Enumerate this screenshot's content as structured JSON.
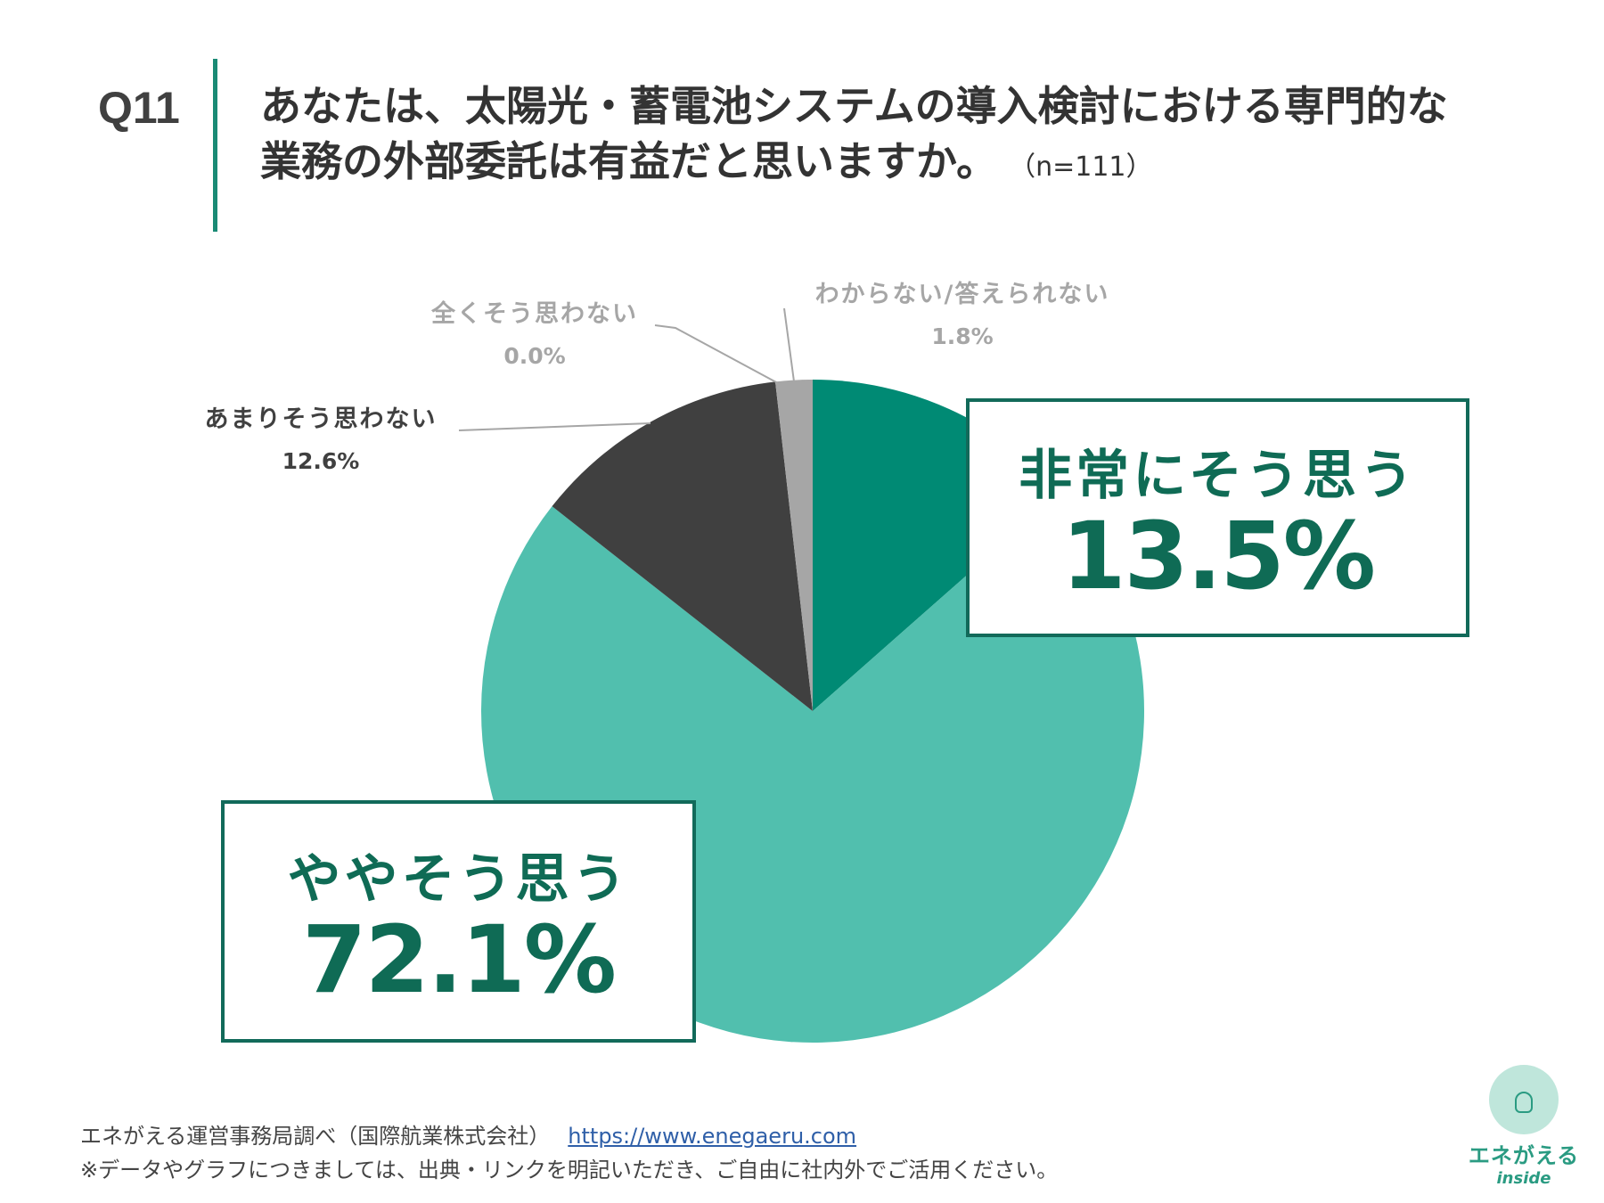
{
  "header": {
    "q_number": "Q11",
    "question_line1": "あなたは、太陽光・蓄電池システムの導入検討における専門的な",
    "question_line2": "業務の外部委託は有益だと思いますか。",
    "sample_size": "（n=111）"
  },
  "chart_data": {
    "type": "pie",
    "start_angle_deg": 0,
    "direction": "clockwise",
    "slices": [
      {
        "label": "非常にそう思う",
        "value": 13.5,
        "value_label": "13.5%",
        "color": "#008a74"
      },
      {
        "label": "ややそう思う",
        "value": 72.1,
        "value_label": "72.1%",
        "color": "#51bfae"
      },
      {
        "label": "あまりそう思わない",
        "value": 12.6,
        "value_label": "12.6%",
        "color": "#404040"
      },
      {
        "label": "全くそう思わない",
        "value": 0.0,
        "value_label": "0.0%",
        "color": "#c0c0c0"
      },
      {
        "label": "わからない/答えられない",
        "value": 1.8,
        "value_label": "1.8%",
        "color": "#a6a6a6"
      }
    ],
    "label_colors": {
      "dark": "#404040",
      "light": "#a6a6a6",
      "callout": "#0f6b55"
    }
  },
  "footer": {
    "source": "エネがえる運営事務局調べ（国際航業株式会社）",
    "url": "https://www.enegaeru.com",
    "note": "※データやグラフにつきましては、出典・リンクを明記いただき、ご自由に社内外でご活用ください。"
  },
  "logo": {
    "name": "エネがえる",
    "sub": "inside",
    "icon": "lightbulb-icon"
  }
}
